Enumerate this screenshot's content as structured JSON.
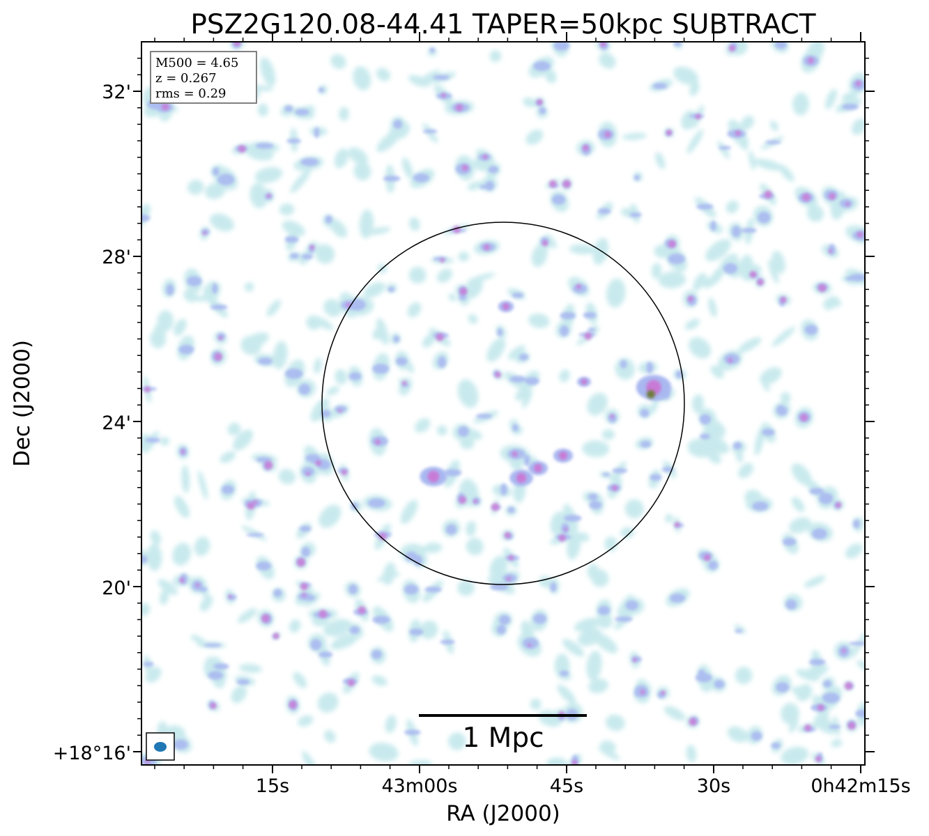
{
  "chart_data": {
    "type": "heatmap",
    "title": "PSZ2G120.08-44.41 TAPER=50kpc SUBTRACT",
    "xlabel": "RA (J2000)",
    "ylabel": "Dec (J2000)",
    "x_ticks": [
      "15s",
      "43m00s",
      "45s",
      "30s",
      "0h42m15s"
    ],
    "y_ticks": [
      "32'",
      "28'",
      "24'",
      "20'",
      "+18°16'"
    ],
    "info_box": [
      "M500 = 4.65",
      "z = 0.267",
      "rms = 0.29"
    ],
    "scalebar_label": "1 Mpc",
    "colors": {
      "low": "#bfe6ea",
      "mid": "#a9b8f0",
      "high": "#c87ad6",
      "peak": "#6e7a3a"
    }
  }
}
